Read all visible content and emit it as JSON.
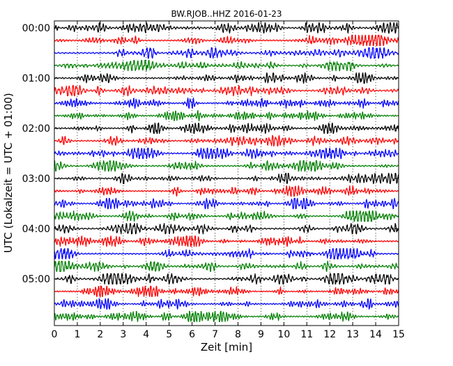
{
  "chart_data": {
    "type": "line",
    "title": "BW.RJOB..HHZ 2016-01-23",
    "xlabel": "Zeit  [min]",
    "ylabel": "UTC (Lokalzeit = UTC + 01:00)",
    "xlim": [
      0,
      15
    ],
    "x_ticks": [
      "0",
      "1",
      "2",
      "3",
      "4",
      "5",
      "6",
      "7",
      "8",
      "9",
      "10",
      "11",
      "12",
      "13",
      "14",
      "15"
    ],
    "y_ticks": [
      "00:00",
      "01:00",
      "02:00",
      "03:00",
      "04:00",
      "05:00"
    ],
    "traces_per_hour": 4,
    "trace_count": 24,
    "trace_colors": [
      "#000000",
      "#ff0000",
      "#0000ff",
      "#008000"
    ],
    "grid": "vertical dotted lines at each minute"
  }
}
